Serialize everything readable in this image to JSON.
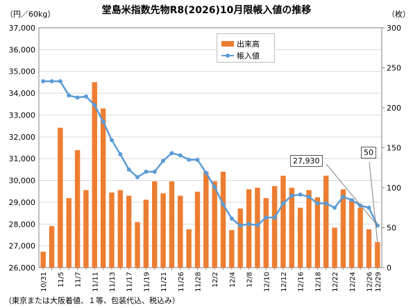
{
  "title": "堂島米指数先物R8(2026)10月限帳入値の推移",
  "left_unit": "（円／60kg）",
  "right_unit": "（枚）",
  "footnote": "（東京または大阪着値、１等、包装代込、税込み）",
  "legend": {
    "bar_label": "出来高",
    "line_label": "帳入値"
  },
  "annotations": {
    "price_callout": "27,930",
    "volume_callout": "50"
  },
  "colors": {
    "bar": "#ED7D31",
    "line": "#5B9BD5",
    "grid": "#D9D9D9"
  },
  "chart_data": {
    "type": "bar+line",
    "categories": [
      "10/31",
      "11/4",
      "11/5",
      "11/6",
      "11/7",
      "11/10",
      "11/11",
      "11/12",
      "11/13",
      "11/14",
      "11/17",
      "11/18",
      "11/19",
      "11/20",
      "11/21",
      "11/25",
      "11/26",
      "11/27",
      "11/28",
      "12/1",
      "12/2",
      "12/3",
      "12/4",
      "12/5",
      "12/8",
      "12/9",
      "12/10",
      "12/11",
      "12/12",
      "12/15",
      "12/16",
      "12/17",
      "12/18",
      "12/19",
      "12/22",
      "12/23",
      "12/24",
      "12/25",
      "12/26",
      "12/29"
    ],
    "x_tick_labels": [
      "10/31",
      "11/5",
      "11/7",
      "11/11",
      "11/13",
      "11/17",
      "11/19",
      "11/21",
      "11/26",
      "11/28",
      "12/2",
      "12/4",
      "12/8",
      "12/10",
      "12/12",
      "12/16",
      "12/18",
      "12/22",
      "12/24",
      "12/26",
      "12/29"
    ],
    "bar_series": {
      "name": "出来高",
      "axis": "right",
      "values": [
        20,
        52,
        175,
        87,
        147,
        97,
        232,
        199,
        94,
        97,
        90,
        57,
        85,
        108,
        93,
        108,
        90,
        48,
        95,
        120,
        108,
        120,
        47,
        74,
        98,
        100,
        87,
        102,
        115,
        100,
        75,
        97,
        88,
        115,
        50,
        98,
        85,
        75,
        48,
        32
      ]
    },
    "line_series": {
      "name": "帳入値",
      "axis": "left",
      "values": [
        34550,
        34550,
        34550,
        33900,
        33800,
        33850,
        33450,
        32700,
        31850,
        31200,
        30500,
        30150,
        30400,
        30400,
        30900,
        31250,
        31150,
        30950,
        30950,
        30350,
        29700,
        28900,
        28250,
        27930,
        28000,
        27950,
        28300,
        28300,
        28950,
        29300,
        29350,
        29250,
        28950,
        28950,
        28750,
        29250,
        29100,
        28850,
        28750,
        27930
      ]
    },
    "y_left": {
      "min": 26000,
      "max": 37000,
      "step": 1000,
      "tick_labels": [
        "26,000",
        "27,000",
        "28,000",
        "29,000",
        "30,000",
        "31,000",
        "32,000",
        "33,000",
        "34,000",
        "35,000",
        "36,000",
        "37,000"
      ]
    },
    "y_right": {
      "min": 0,
      "max": 300,
      "step": 50,
      "tick_labels": [
        "0",
        "50",
        "100",
        "150",
        "200",
        "250",
        "300"
      ]
    },
    "grid": true,
    "legend_position": "top-center"
  }
}
